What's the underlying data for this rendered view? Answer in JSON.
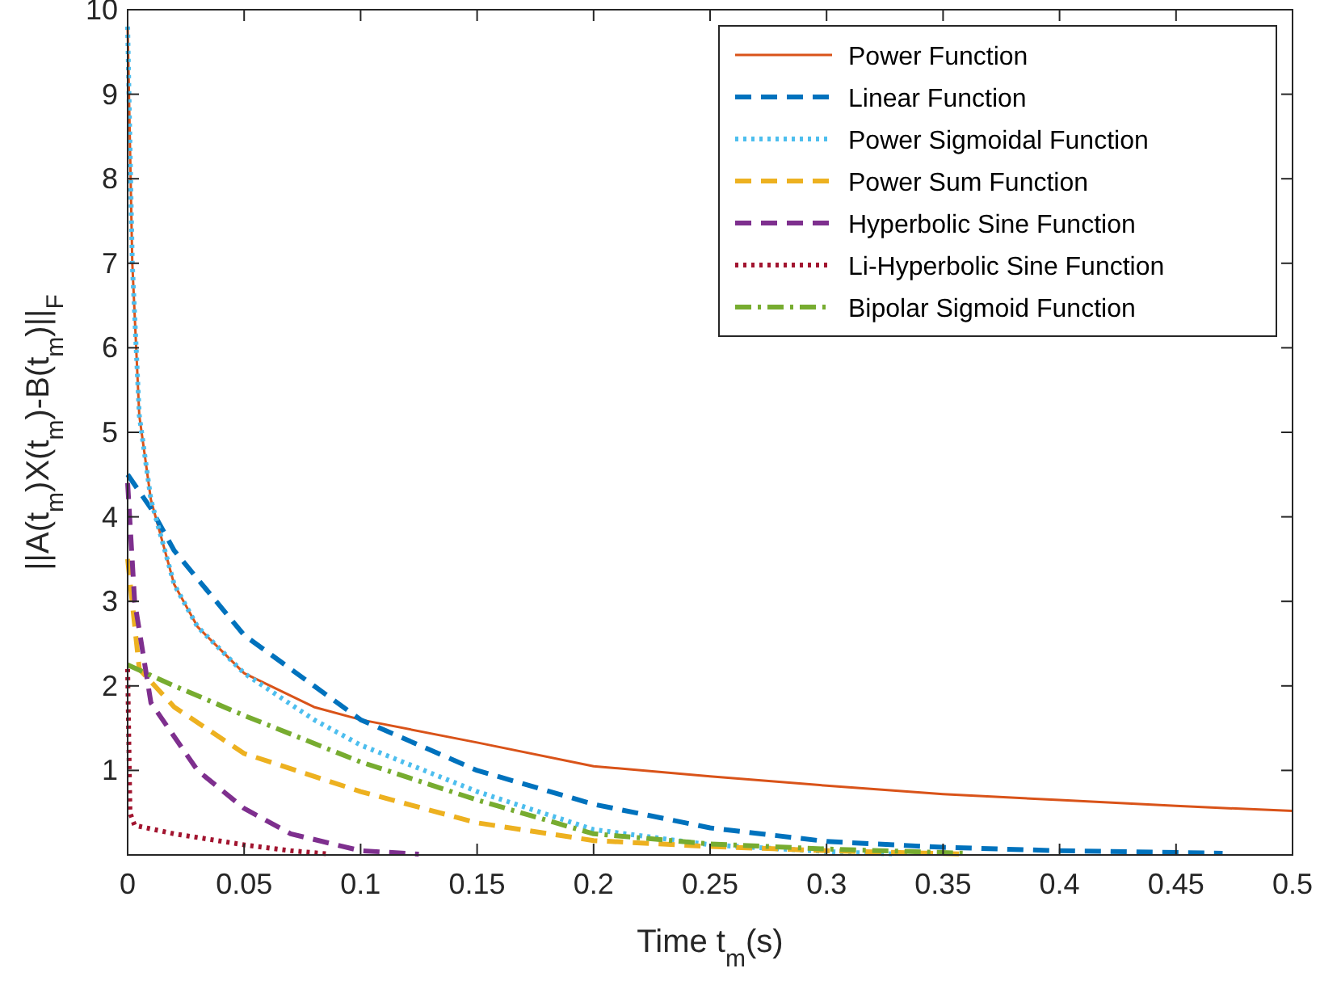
{
  "chart_data": {
    "type": "line",
    "xlabel": "Time t$_{m}$(s)",
    "ylabel": "||A(t$_{m}$)X(t$_{m}$)-B(t$_{m}$)||$_{F}$",
    "xlim": [
      0,
      0.5
    ],
    "ylim": [
      0,
      10
    ],
    "xticks": [
      0,
      0.05,
      0.1,
      0.15,
      0.2,
      0.25,
      0.3,
      0.35,
      0.4,
      0.45,
      0.5
    ],
    "yticks": [
      1,
      2,
      3,
      4,
      5,
      6,
      7,
      8,
      9,
      10
    ],
    "grid": false,
    "legend": "top right",
    "marker": "none",
    "series": [
      {
        "name": "Power Function",
        "color": "#d95319",
        "line_style": "solid",
        "x": [
          0,
          0.002,
          0.005,
          0.01,
          0.02,
          0.03,
          0.05,
          0.08,
          0.1,
          0.15,
          0.2,
          0.25,
          0.3,
          0.35,
          0.4,
          0.45,
          0.5
        ],
        "values": [
          9.8,
          7,
          5.2,
          4.2,
          3.2,
          2.7,
          2.15,
          1.75,
          1.6,
          1.33,
          1.05,
          0.93,
          0.82,
          0.72,
          0.65,
          0.58,
          0.52
        ]
      },
      {
        "name": "Linear Function",
        "color": "#0072bd",
        "line_style": "dashed",
        "x": [
          0,
          0.01,
          0.02,
          0.05,
          0.08,
          0.1,
          0.15,
          0.2,
          0.25,
          0.3,
          0.35,
          0.4,
          0.47
        ],
        "values": [
          4.5,
          4.1,
          3.6,
          2.6,
          2.0,
          1.6,
          1.0,
          0.6,
          0.32,
          0.16,
          0.09,
          0.05,
          0.02
        ]
      },
      {
        "name": "Power Sigmoidal Function",
        "color": "#4dbeee",
        "line_style": "dotted",
        "x": [
          0,
          0.002,
          0.005,
          0.01,
          0.02,
          0.03,
          0.05,
          0.08,
          0.1,
          0.15,
          0.2,
          0.25,
          0.3,
          0.33
        ],
        "values": [
          9.8,
          7,
          5.2,
          4.2,
          3.2,
          2.7,
          2.15,
          1.6,
          1.3,
          0.75,
          0.3,
          0.12,
          0.04,
          0.01
        ]
      },
      {
        "name": "Power Sum Function",
        "color": "#edb120",
        "line_style": "dashed",
        "x": [
          0,
          0.005,
          0.02,
          0.05,
          0.1,
          0.15,
          0.2,
          0.25,
          0.3,
          0.36
        ],
        "values": [
          3.5,
          2.2,
          1.75,
          1.2,
          0.75,
          0.38,
          0.17,
          0.1,
          0.05,
          0.01
        ]
      },
      {
        "name": "Hyperbolic Sine Function",
        "color": "#7e2f8e",
        "line_style": "dashed",
        "x": [
          0,
          0.003,
          0.01,
          0.03,
          0.05,
          0.07,
          0.1,
          0.125
        ],
        "values": [
          4.4,
          3,
          1.8,
          1.0,
          0.55,
          0.25,
          0.05,
          0.01
        ]
      },
      {
        "name": "Li-Hyperbolic Sine Function",
        "color": "#a2142f",
        "line_style": "dotted",
        "x": [
          0,
          0.001,
          0.003,
          0.02,
          0.05,
          0.07,
          0.087
        ],
        "values": [
          2.2,
          0.5,
          0.35,
          0.25,
          0.12,
          0.05,
          0.01
        ]
      },
      {
        "name": "Bipolar Sigmoid Function",
        "color": "#77ac30",
        "line_style": "dashdot",
        "x": [
          0,
          0.02,
          0.05,
          0.1,
          0.15,
          0.2,
          0.25,
          0.3,
          0.36
        ],
        "values": [
          2.25,
          2.0,
          1.65,
          1.1,
          0.65,
          0.25,
          0.13,
          0.07,
          0.02
        ]
      }
    ]
  }
}
